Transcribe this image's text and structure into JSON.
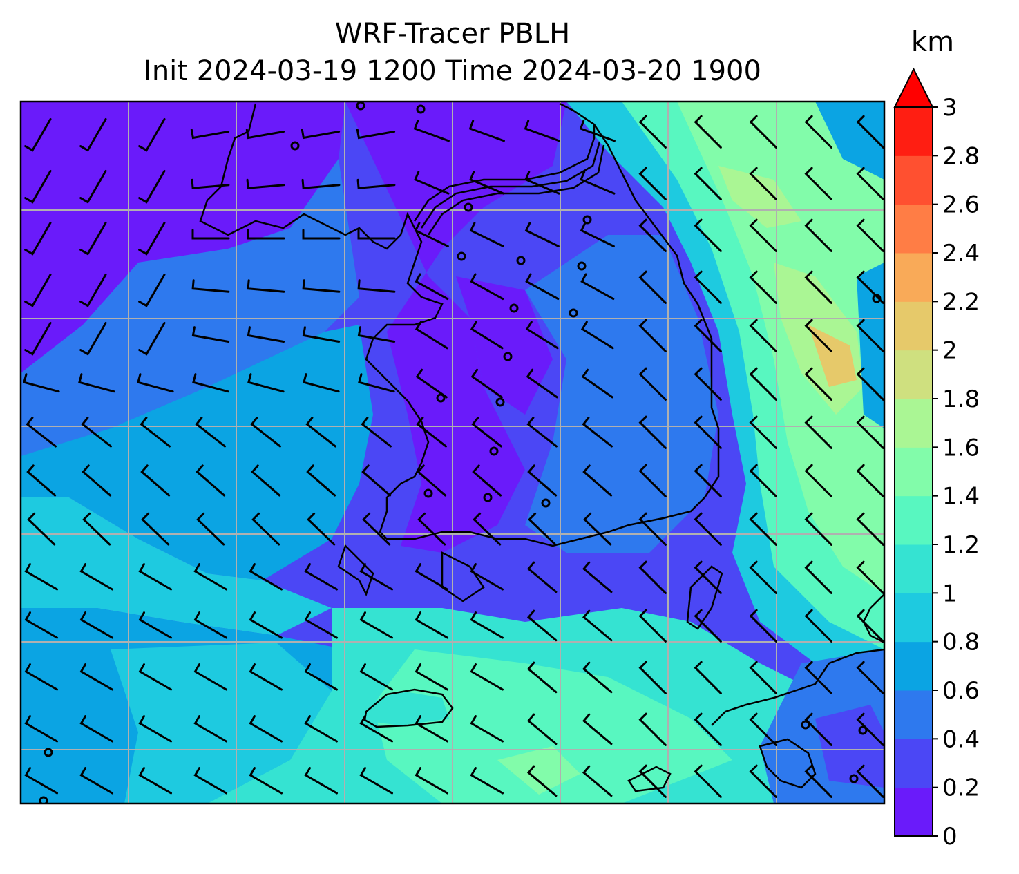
{
  "title": {
    "line1": "WRF-Tracer PBLH",
    "line2": "Init 2024-03-19 1200 Time 2024-03-20 1900"
  },
  "colorbar": {
    "unit": "km",
    "ticks": [
      "0",
      "0.2",
      "0.4",
      "0.6",
      "0.8",
      "1",
      "1.2",
      "1.4",
      "1.6",
      "1.8",
      "2",
      "2.2",
      "2.4",
      "2.6",
      "2.8",
      "3"
    ],
    "extend": "max",
    "colors": [
      "#6a1bfa",
      "#4b47f5",
      "#2e79ee",
      "#0ba4e3",
      "#1ecae0",
      "#35e3d2",
      "#58f7c0",
      "#82fcaa",
      "#aaf694",
      "#cfe07f",
      "#e6c96a",
      "#f9aa58",
      "#ff7d45",
      "#ff5030",
      "#ff1e12"
    ],
    "extend_color": "#ff0000"
  },
  "map": {
    "gridlines": true,
    "gridline_color": "#b0b0b0",
    "coastline_color": "#000000",
    "wind_barb_color": "#000000",
    "background_color": "#4b47f5"
  }
}
